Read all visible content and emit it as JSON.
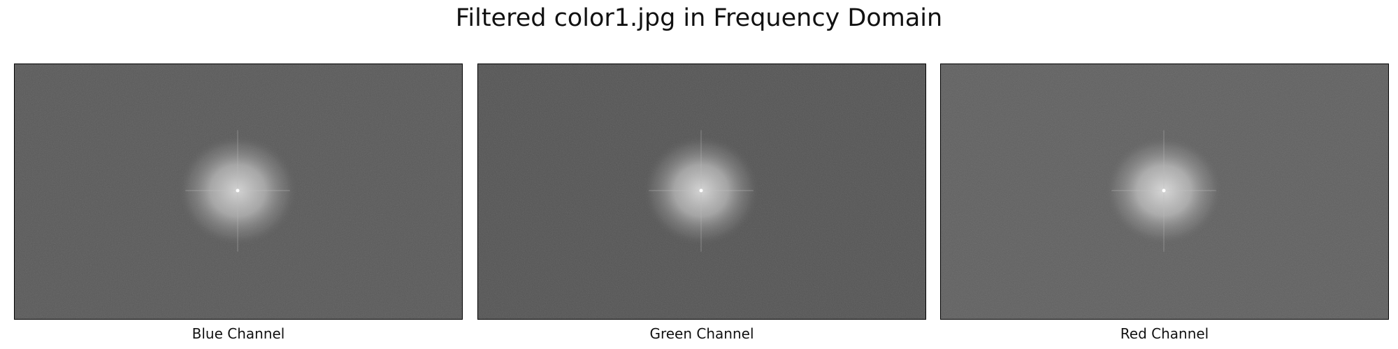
{
  "figure": {
    "title": "Filtered color1.jpg in Frequency Domain"
  },
  "panels": [
    {
      "label": "Blue Channel",
      "background": "#595959"
    },
    {
      "label": "Green Channel",
      "background": "#545454"
    },
    {
      "label": "Red Channel",
      "background": "#606060"
    }
  ]
}
